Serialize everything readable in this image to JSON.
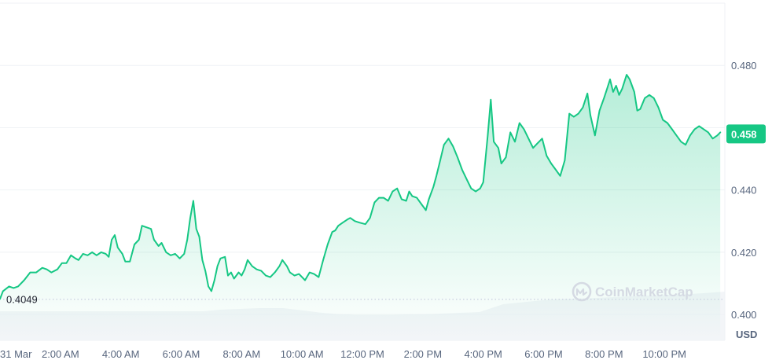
{
  "chart_data": {
    "type": "area",
    "title": "",
    "xlabel": "",
    "ylabel": "",
    "unit_label": "USD",
    "watermark": "CoinMarketCap",
    "x_tick_labels": [
      "31 Mar",
      "2:00 AM",
      "4:00 AM",
      "6:00 AM",
      "8:00 AM",
      "10:00 AM",
      "12:00 PM",
      "2:00 PM",
      "4:00 PM",
      "6:00 PM",
      "8:00 PM",
      "10:00 PM"
    ],
    "y_ticks": [
      "0.400",
      "0.420",
      "0.440",
      "0.460",
      "0.480"
    ],
    "ylim": [
      0.3975,
      0.5
    ],
    "xlim": [
      0,
      24
    ],
    "start_value_label": "0.4049",
    "start_value": 0.4049,
    "current_price_label": "0.458",
    "current_price": 0.458,
    "grid": "horizontal",
    "colors": {
      "line": "#16c784",
      "tag": "#16c784",
      "grid": "#eff2f5",
      "volume": "#eff2f5",
      "tick_text": "#58667e"
    },
    "series": [
      {
        "values": [
          [
            0.0,
            0.405
          ],
          [
            0.1,
            0.4075
          ],
          [
            0.3,
            0.409
          ],
          [
            0.45,
            0.4085
          ],
          [
            0.6,
            0.409
          ],
          [
            0.8,
            0.411
          ],
          [
            1.0,
            0.4135
          ],
          [
            1.2,
            0.4135
          ],
          [
            1.4,
            0.415
          ],
          [
            1.55,
            0.4145
          ],
          [
            1.7,
            0.4135
          ],
          [
            1.9,
            0.4145
          ],
          [
            2.05,
            0.4165
          ],
          [
            2.2,
            0.4165
          ],
          [
            2.35,
            0.419
          ],
          [
            2.5,
            0.418
          ],
          [
            2.6,
            0.4175
          ],
          [
            2.75,
            0.4195
          ],
          [
            2.9,
            0.419
          ],
          [
            3.05,
            0.42
          ],
          [
            3.2,
            0.419
          ],
          [
            3.35,
            0.42
          ],
          [
            3.5,
            0.4195
          ],
          [
            3.6,
            0.4185
          ],
          [
            3.7,
            0.424
          ],
          [
            3.8,
            0.4255
          ],
          [
            3.9,
            0.4215
          ],
          [
            4.05,
            0.4195
          ],
          [
            4.15,
            0.417
          ],
          [
            4.3,
            0.417
          ],
          [
            4.45,
            0.4225
          ],
          [
            4.6,
            0.424
          ],
          [
            4.7,
            0.4285
          ],
          [
            4.85,
            0.428
          ],
          [
            5.0,
            0.4275
          ],
          [
            5.1,
            0.424
          ],
          [
            5.25,
            0.422
          ],
          [
            5.35,
            0.423
          ],
          [
            5.5,
            0.42
          ],
          [
            5.65,
            0.419
          ],
          [
            5.8,
            0.4195
          ],
          [
            5.95,
            0.418
          ],
          [
            6.1,
            0.4195
          ],
          [
            6.2,
            0.424
          ],
          [
            6.3,
            0.431
          ],
          [
            6.4,
            0.4365
          ],
          [
            6.5,
            0.4275
          ],
          [
            6.6,
            0.425
          ],
          [
            6.7,
            0.4175
          ],
          [
            6.8,
            0.414
          ],
          [
            6.9,
            0.409
          ],
          [
            7.0,
            0.4075
          ],
          [
            7.1,
            0.411
          ],
          [
            7.2,
            0.4155
          ],
          [
            7.3,
            0.418
          ],
          [
            7.45,
            0.4185
          ],
          [
            7.55,
            0.4125
          ],
          [
            7.65,
            0.4135
          ],
          [
            7.75,
            0.4115
          ],
          [
            7.9,
            0.4135
          ],
          [
            8.0,
            0.4125
          ],
          [
            8.1,
            0.4145
          ],
          [
            8.2,
            0.4175
          ],
          [
            8.35,
            0.4155
          ],
          [
            8.5,
            0.4145
          ],
          [
            8.65,
            0.414
          ],
          [
            8.8,
            0.4125
          ],
          [
            8.95,
            0.412
          ],
          [
            9.1,
            0.4135
          ],
          [
            9.25,
            0.4155
          ],
          [
            9.35,
            0.4175
          ],
          [
            9.5,
            0.4155
          ],
          [
            9.6,
            0.4135
          ],
          [
            9.75,
            0.4125
          ],
          [
            9.9,
            0.413
          ],
          [
            10.0,
            0.412
          ],
          [
            10.1,
            0.411
          ],
          [
            10.25,
            0.4135
          ],
          [
            10.4,
            0.413
          ],
          [
            10.55,
            0.412
          ],
          [
            10.7,
            0.4175
          ],
          [
            10.85,
            0.4225
          ],
          [
            11.0,
            0.4265
          ],
          [
            11.1,
            0.427
          ],
          [
            11.2,
            0.4285
          ],
          [
            11.35,
            0.4295
          ],
          [
            11.5,
            0.4305
          ],
          [
            11.6,
            0.431
          ],
          [
            11.75,
            0.43
          ],
          [
            11.9,
            0.4295
          ],
          [
            12.1,
            0.429
          ],
          [
            12.25,
            0.431
          ],
          [
            12.4,
            0.436
          ],
          [
            12.55,
            0.4375
          ],
          [
            12.7,
            0.4375
          ],
          [
            12.85,
            0.4365
          ],
          [
            13.0,
            0.4395
          ],
          [
            13.15,
            0.4405
          ],
          [
            13.3,
            0.437
          ],
          [
            13.45,
            0.4365
          ],
          [
            13.55,
            0.4395
          ],
          [
            13.65,
            0.438
          ],
          [
            13.8,
            0.4375
          ],
          [
            13.95,
            0.4355
          ],
          [
            14.1,
            0.4335
          ],
          [
            14.2,
            0.437
          ],
          [
            14.35,
            0.441
          ],
          [
            14.45,
            0.4445
          ],
          [
            14.55,
            0.4485
          ],
          [
            14.7,
            0.4545
          ],
          [
            14.85,
            0.4565
          ],
          [
            15.0,
            0.454
          ],
          [
            15.15,
            0.4505
          ],
          [
            15.3,
            0.4465
          ],
          [
            15.45,
            0.4435
          ],
          [
            15.6,
            0.4405
          ],
          [
            15.75,
            0.4395
          ],
          [
            15.9,
            0.4405
          ],
          [
            16.0,
            0.4425
          ],
          [
            16.15,
            0.4575
          ],
          [
            16.25,
            0.469
          ],
          [
            16.35,
            0.4555
          ],
          [
            16.5,
            0.4535
          ],
          [
            16.6,
            0.4485
          ],
          [
            16.75,
            0.4505
          ],
          [
            16.9,
            0.4585
          ],
          [
            17.05,
            0.4555
          ],
          [
            17.2,
            0.4615
          ],
          [
            17.35,
            0.4595
          ],
          [
            17.5,
            0.4565
          ],
          [
            17.65,
            0.4535
          ],
          [
            17.8,
            0.455
          ],
          [
            17.95,
            0.4565
          ],
          [
            18.1,
            0.451
          ],
          [
            18.25,
            0.4485
          ],
          [
            18.4,
            0.4465
          ],
          [
            18.55,
            0.4445
          ],
          [
            18.7,
            0.4495
          ],
          [
            18.85,
            0.4645
          ],
          [
            19.0,
            0.4635
          ],
          [
            19.15,
            0.4645
          ],
          [
            19.3,
            0.4665
          ],
          [
            19.45,
            0.471
          ],
          [
            19.55,
            0.464
          ],
          [
            19.7,
            0.4575
          ],
          [
            19.85,
            0.4655
          ],
          [
            20.0,
            0.4695
          ],
          [
            20.1,
            0.4725
          ],
          [
            20.2,
            0.4755
          ],
          [
            20.3,
            0.4715
          ],
          [
            20.4,
            0.4735
          ],
          [
            20.5,
            0.4705
          ],
          [
            20.6,
            0.4725
          ],
          [
            20.75,
            0.477
          ],
          [
            20.85,
            0.4755
          ],
          [
            21.0,
            0.4715
          ],
          [
            21.1,
            0.4655
          ],
          [
            21.2,
            0.466
          ],
          [
            21.35,
            0.4695
          ],
          [
            21.5,
            0.4705
          ],
          [
            21.65,
            0.4695
          ],
          [
            21.8,
            0.4665
          ],
          [
            21.95,
            0.4625
          ],
          [
            22.1,
            0.4615
          ],
          [
            22.25,
            0.4595
          ],
          [
            22.4,
            0.4575
          ],
          [
            22.55,
            0.4555
          ],
          [
            22.7,
            0.4545
          ],
          [
            22.85,
            0.4575
          ],
          [
            23.0,
            0.4595
          ],
          [
            23.15,
            0.4605
          ],
          [
            23.3,
            0.4595
          ],
          [
            23.45,
            0.4585
          ],
          [
            23.6,
            0.4565
          ],
          [
            23.75,
            0.4575
          ],
          [
            23.85,
            0.4585
          ]
        ]
      }
    ]
  }
}
